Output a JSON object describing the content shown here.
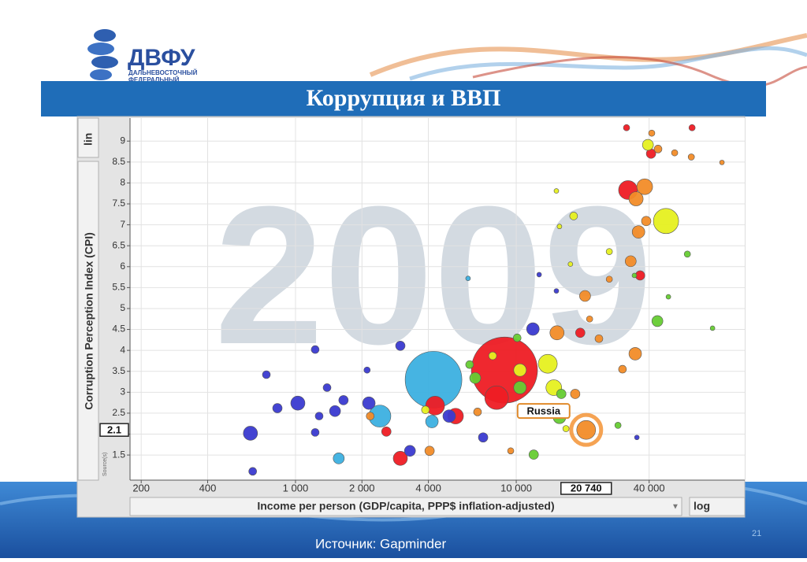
{
  "slide": {
    "title": "Коррупция и ВВП",
    "logo": "ДВФУ",
    "logo_line1": "ДАЛЬНЕВОСТОЧНЫЙ",
    "logo_line2": "ФЕДЕРАЛЬНЫЙ",
    "source": "Источник: Gapminder",
    "page": "21"
  },
  "chart_data": {
    "type": "bubble",
    "year": "2009",
    "xlabel": "Income per person (GDP/capita, PPP$ inflation-adjusted)",
    "ylabel": "Corruption Perception Index (CPI)",
    "xscale": "log",
    "yscale_label": "lin",
    "xscale_label": "log",
    "sources_label": "Source(s)",
    "xlim": [
      178,
      92000
    ],
    "ylim": [
      0.9,
      9.55
    ],
    "grid": true,
    "xticks": [
      200,
      400,
      {
        "value": 1000,
        "label": "1 000"
      },
      {
        "value": 2000,
        "label": "2 000"
      },
      {
        "value": 4000,
        "label": "4 000"
      },
      {
        "value": 10000,
        "label": "10 000"
      },
      {
        "value": 40000,
        "label": "40 000"
      }
    ],
    "yticks": [
      1.5,
      2,
      2.5,
      3,
      3.5,
      4,
      4.5,
      5,
      5.5,
      6,
      6.5,
      7,
      7.5,
      8,
      8.5,
      9
    ],
    "highlight": {
      "label": "Russia",
      "x": {
        "value": 20740,
        "label": "20 740"
      },
      "y": 2.1
    },
    "series": [
      {
        "color": "#3cb0e0",
        "x": [
          4220,
          2410,
          1570,
          4150,
          6050
        ],
        "values": [
          3.3,
          2.43,
          1.42,
          2.3,
          5.72
        ],
        "sizes": [
          36,
          14,
          7,
          8,
          3
        ]
      },
      {
        "color": "#ee1c24",
        "x": [
          8840,
          8150,
          4290,
          5310,
          2985,
          2580,
          32100,
          36400,
          31600,
          62600,
          40800,
          19500
        ],
        "values": [
          3.53,
          2.87,
          2.68,
          2.43,
          1.42,
          2.06,
          7.83,
          5.79,
          9.32,
          9.32,
          8.7,
          4.42
        ],
        "sizes": [
          42,
          15,
          12,
          10,
          9,
          6,
          12,
          6,
          4,
          4,
          6,
          6
        ]
      },
      {
        "color": "#3a3ad0",
        "x": [
          625,
          640,
          738,
          828,
          1025,
          1228,
          1280,
          1228,
          1390,
          1510,
          1650,
          2110,
          2150,
          2985,
          3300,
          4970,
          7080,
          11900,
          12700,
          15200,
          35200
        ],
        "values": [
          2.02,
          1.11,
          3.42,
          2.62,
          2.74,
          4.02,
          2.43,
          2.04,
          3.11,
          2.55,
          2.81,
          3.53,
          2.74,
          4.11,
          1.6,
          2.43,
          1.92,
          4.51,
          5.81,
          5.42,
          1.92
        ],
        "sizes": [
          9,
          5,
          5,
          6,
          9,
          5,
          5,
          5,
          5,
          7,
          6,
          4,
          8,
          6,
          7,
          8,
          6,
          8,
          3,
          3,
          3
        ]
      },
      {
        "color": "#f28c28",
        "x": [
          20740,
          38200,
          34900,
          35800,
          38800,
          33000,
          20500,
          15300,
          34600,
          23700,
          18500,
          4050,
          9440,
          41100,
          43900,
          52200,
          62100,
          85500,
          21500,
          30300,
          6680,
          2180,
          26400
        ],
        "values": [
          2.1,
          7.91,
          7.62,
          6.83,
          7.09,
          6.13,
          5.3,
          4.42,
          3.92,
          4.28,
          2.96,
          1.6,
          1.6,
          9.19,
          8.81,
          8.72,
          8.62,
          8.49,
          4.75,
          3.55,
          2.53,
          2.43,
          5.7
        ],
        "sizes": [
          12,
          10,
          9,
          8,
          6,
          7,
          7,
          9,
          8,
          5,
          6,
          6,
          4,
          4,
          5,
          4,
          4,
          3,
          4,
          5,
          5,
          5,
          4
        ]
      },
      {
        "color": "#e6f020",
        "x": [
          47700,
          13900,
          14800,
          39500,
          18200,
          10400,
          15700,
          17600,
          26400,
          16800,
          3880,
          7820,
          15200
        ],
        "values": [
          7.09,
          3.68,
          3.11,
          8.91,
          7.21,
          3.53,
          6.96,
          6.06,
          6.36,
          2.13,
          2.58,
          3.87,
          7.81
        ],
        "sizes": [
          16,
          12,
          10,
          7,
          5,
          8,
          3,
          3,
          4,
          4,
          5,
          5,
          3
        ]
      },
      {
        "color": "#66cc33",
        "x": [
          43600,
          12000,
          15700,
          6520,
          10100,
          10400,
          16000,
          59600,
          77500,
          48900,
          6150,
          28900,
          34300
        ],
        "values": [
          4.7,
          1.51,
          2.4,
          3.34,
          4.3,
          3.11,
          2.96,
          6.3,
          4.53,
          5.28,
          3.66,
          2.21,
          5.79
        ],
        "sizes": [
          7,
          6,
          8,
          7,
          5,
          8,
          6,
          4,
          3,
          3,
          5,
          4,
          3
        ]
      }
    ]
  }
}
